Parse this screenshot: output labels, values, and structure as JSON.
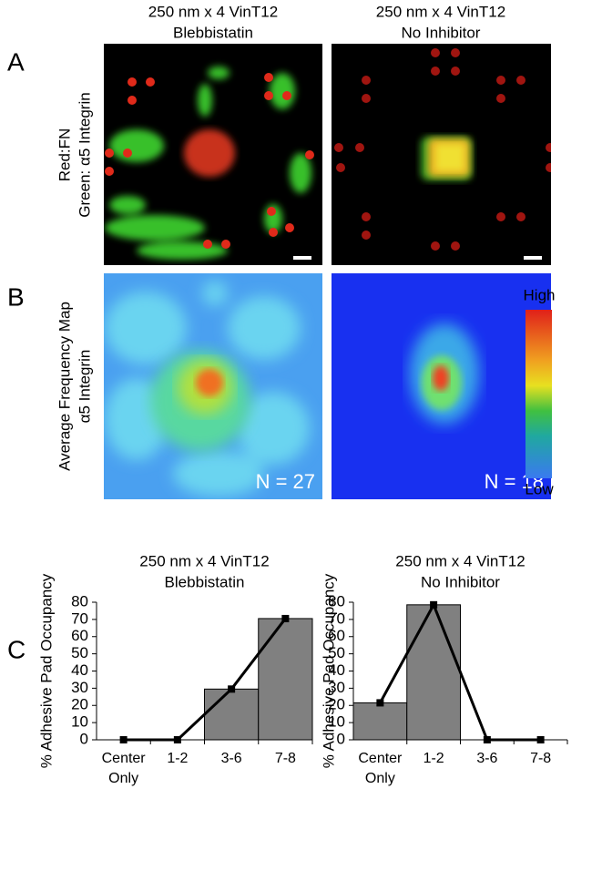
{
  "columns": [
    {
      "title": "250 nm x 4 VinT12",
      "subtitle": "Blebbistatin"
    },
    {
      "title": "250 nm x 4 VinT12",
      "subtitle": "No Inhibitor"
    }
  ],
  "panel_a": {
    "label": "A",
    "ylabel": "Red:FN",
    "ylabel2": "Green: α5 Integrin"
  },
  "panel_b": {
    "label": "B",
    "ylabel": "Average Frequency Map",
    "ylabel2": "α5 Integrin",
    "n_labels": [
      "N = 27",
      "N = 18"
    ],
    "colorbar": {
      "high": "High",
      "low": "Low"
    }
  },
  "panel_c": {
    "label": "C"
  },
  "chart_data": [
    {
      "type": "bar",
      "title": "250 nm x 4 VinT12",
      "subtitle": "Blebbistatin",
      "ylabel": "% Adhesive Pad Occupancy",
      "categories": [
        "Center Only",
        "1-2",
        "3-6",
        "7-8"
      ],
      "series": [
        {
          "type": "bar",
          "color": "#808080",
          "values": [
            0,
            0,
            29.5,
            70.5
          ]
        },
        {
          "type": "line",
          "color": "#000000",
          "values": [
            0,
            0,
            29.5,
            70.5
          ]
        }
      ],
      "ylim": [
        0,
        80
      ],
      "yticks": [
        0,
        10,
        20,
        30,
        40,
        50,
        60,
        70,
        80
      ]
    },
    {
      "type": "bar",
      "title": "250 nm x 4 VinT12",
      "subtitle": "No Inhibitor",
      "ylabel": "% Adhesive Pad Occupancy",
      "categories": [
        "Center Only",
        "1-2",
        "3-6",
        "7-8"
      ],
      "series": [
        {
          "type": "bar",
          "color": "#808080",
          "values": [
            21.5,
            78.5,
            0,
            0
          ]
        },
        {
          "type": "line",
          "color": "#000000",
          "values": [
            21.5,
            78.5,
            0,
            0
          ]
        }
      ],
      "ylim": [
        0,
        80
      ],
      "yticks": [
        0,
        10,
        20,
        30,
        40,
        50,
        60,
        70,
        80
      ]
    }
  ]
}
